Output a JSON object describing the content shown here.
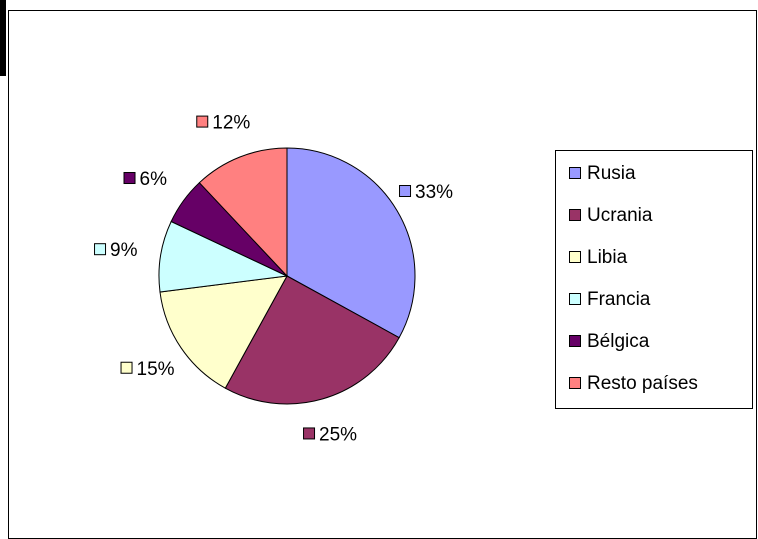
{
  "chart_data": {
    "type": "pie",
    "categories": [
      "Rusia",
      "Ucrania",
      "Libia",
      "Francia",
      "Bélgica",
      "Resto países"
    ],
    "values": [
      33,
      25,
      15,
      9,
      6,
      12
    ],
    "value_labels": [
      "33%",
      "25%",
      "15%",
      "9%",
      "6%",
      "12%"
    ],
    "colors": [
      "#9999ff",
      "#993366",
      "#ffffcc",
      "#ccffff",
      "#660066",
      "#ff8080"
    ],
    "legend": "right"
  }
}
